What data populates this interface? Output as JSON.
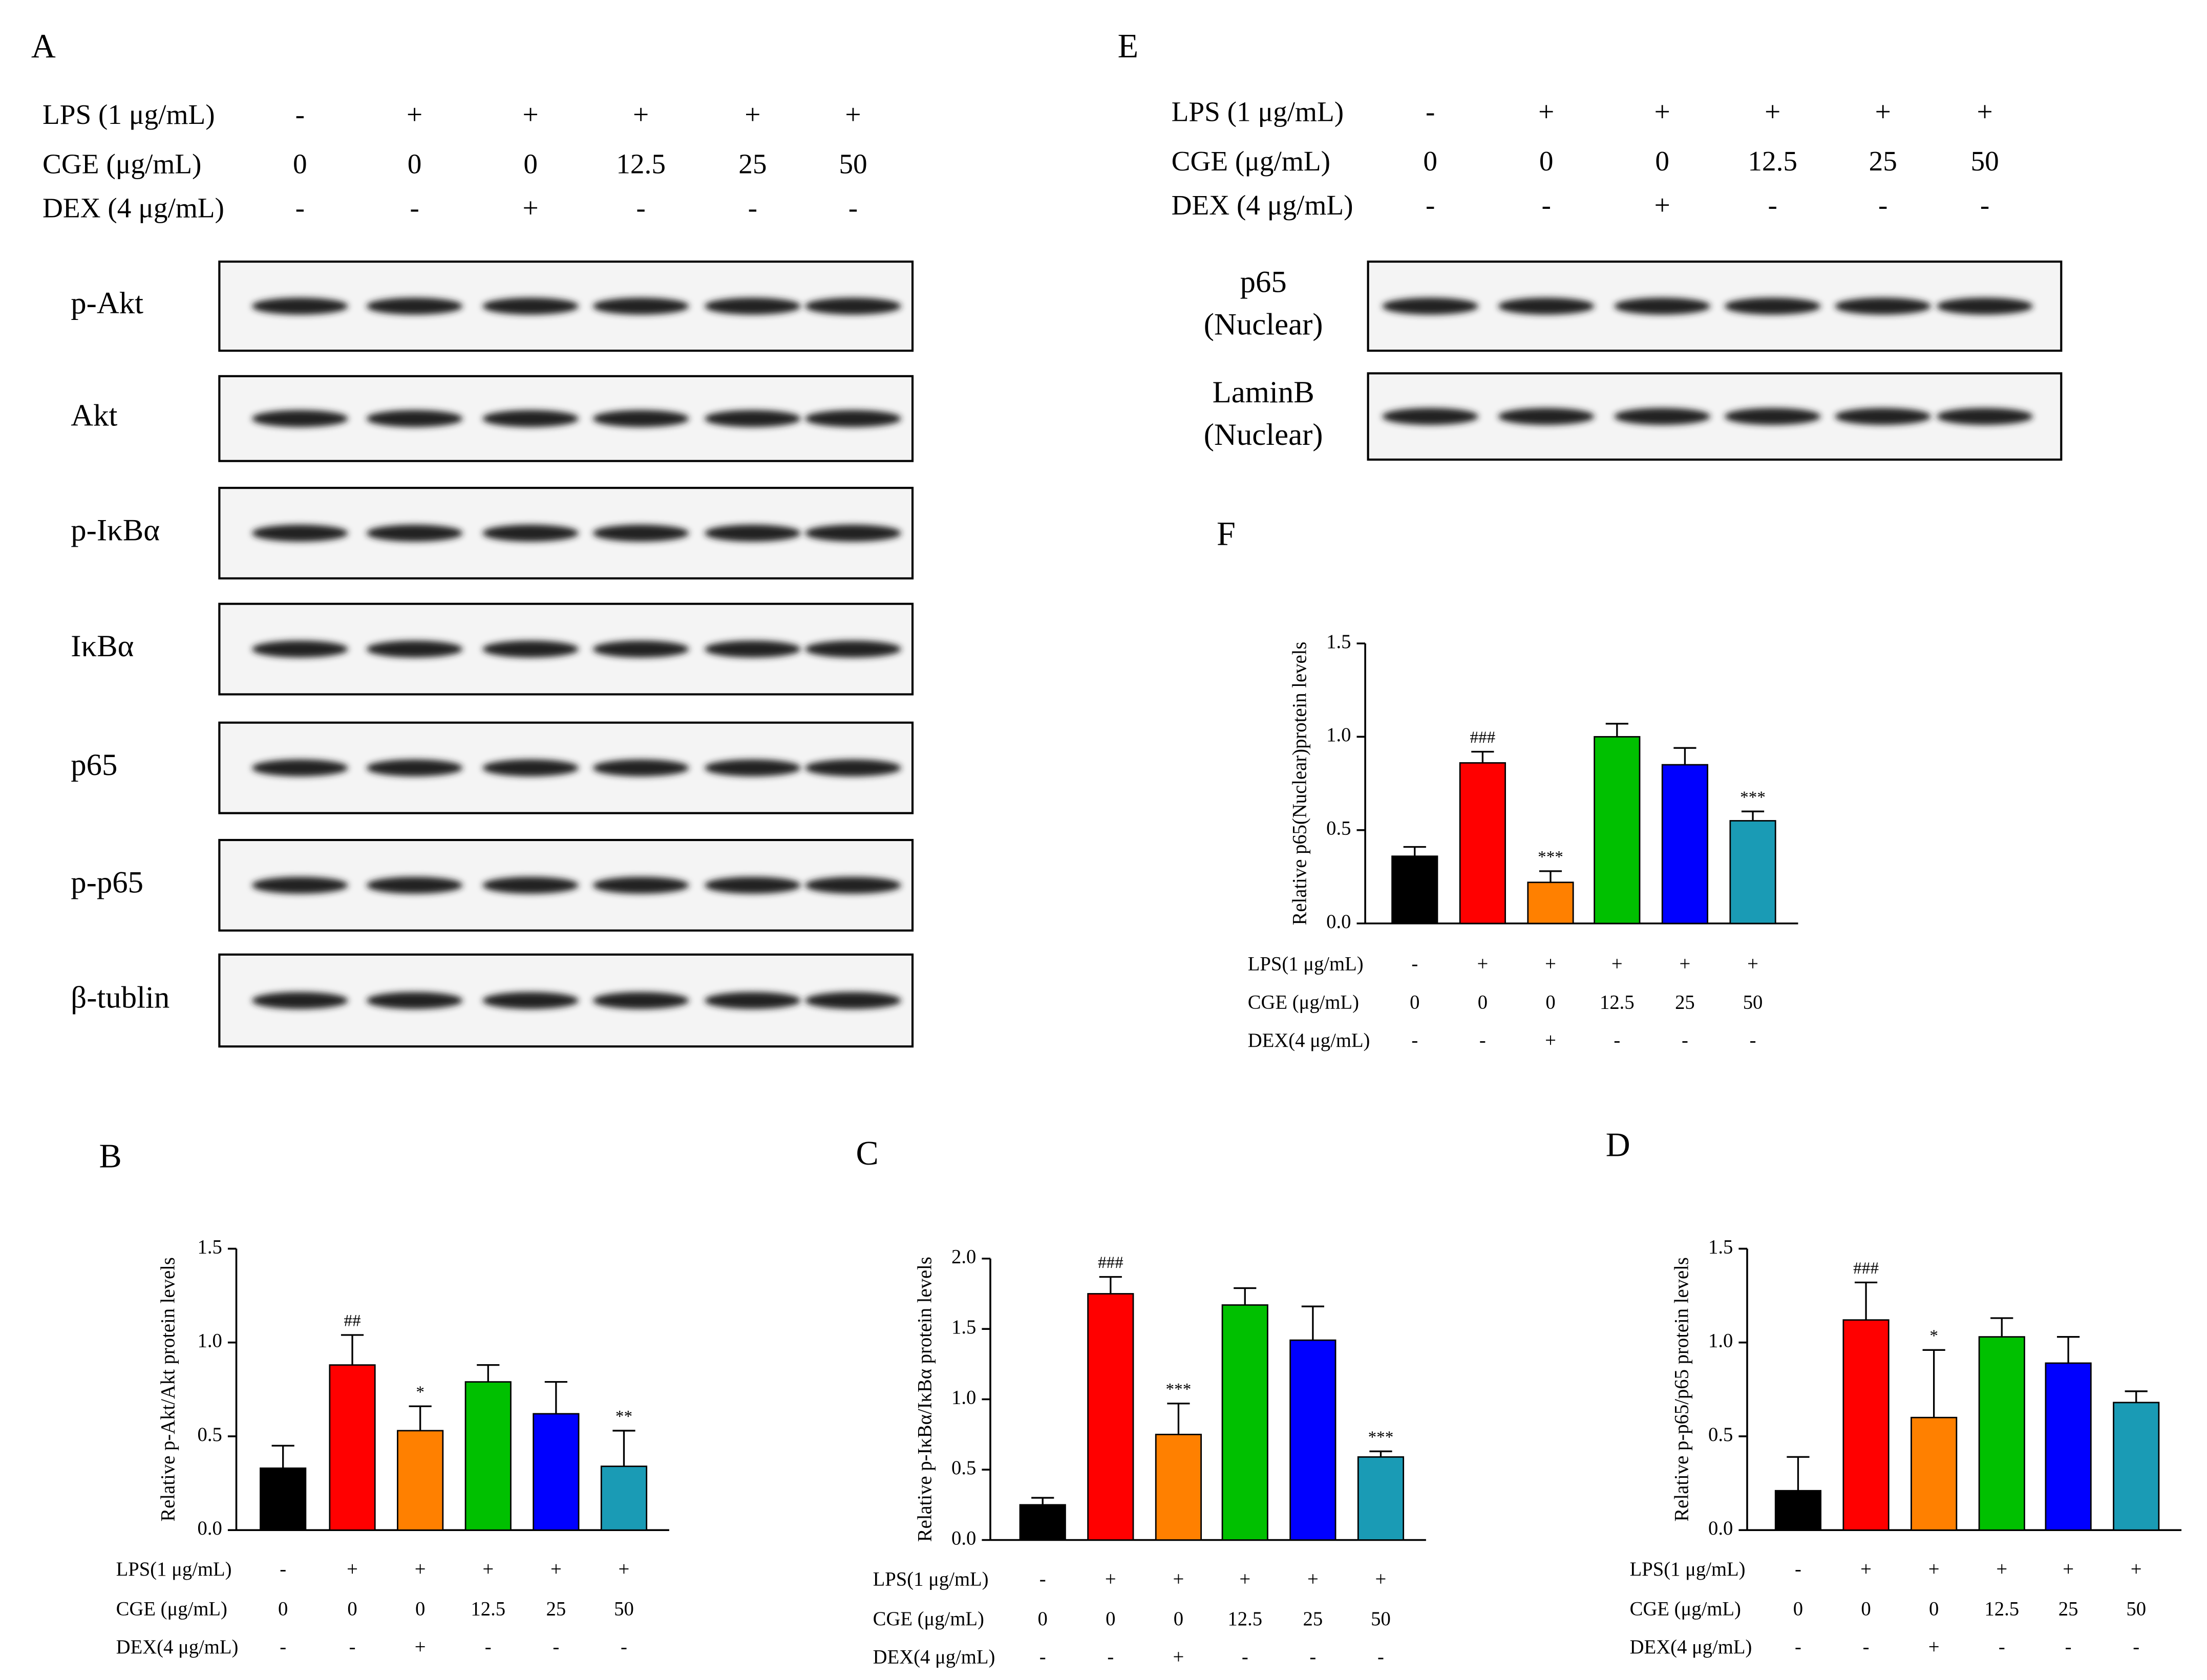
{
  "blot_panels": [
    {
      "panel_label": "A",
      "conditions": [
        {
          "name": "LPS (1 μg/mL)",
          "values": [
            "-",
            "+",
            "+",
            "+",
            "+",
            "+"
          ]
        },
        {
          "name": "CGE (μg/mL)",
          "values": [
            "0",
            "0",
            "0",
            "12.5",
            "25",
            "50"
          ]
        },
        {
          "name": "DEX (4 μg/mL)",
          "values": [
            "-",
            "-",
            "+",
            "-",
            "-",
            "-"
          ]
        }
      ],
      "bands": [
        [
          "p-Akt"
        ],
        [
          "Akt"
        ],
        [
          "p-IκBα"
        ],
        [
          "IκBα"
        ],
        [
          "p65"
        ],
        [
          "p-p65"
        ],
        [
          "β-tublin"
        ]
      ]
    },
    {
      "panel_label": "E",
      "conditions": [
        {
          "name": "LPS (1 μg/mL)",
          "values": [
            "-",
            "+",
            "+",
            "+",
            "+",
            "+"
          ]
        },
        {
          "name": "CGE (μg/mL)",
          "values": [
            "0",
            "0",
            "0",
            "12.5",
            "25",
            "50"
          ]
        },
        {
          "name": "DEX (4 μg/mL)",
          "values": [
            "-",
            "-",
            "+",
            "-",
            "-",
            "-"
          ]
        }
      ],
      "bands": [
        [
          "p65",
          "(Nuclear)"
        ],
        [
          "LaminB",
          "(Nuclear)"
        ]
      ]
    }
  ],
  "chart_data": [
    {
      "type": "bar",
      "panel_label": "B",
      "ylabel": "Relative p-Akt/Akt protein levels",
      "values": [
        0.33,
        0.88,
        0.53,
        0.79,
        0.62,
        0.34
      ],
      "errors": [
        0.12,
        0.16,
        0.13,
        0.09,
        0.17,
        0.19
      ],
      "annotations": [
        null,
        "##",
        "*",
        null,
        null,
        "**"
      ],
      "colors": [
        "#000000",
        "#ff0000",
        "#ff8000",
        "#00c000",
        "#0000ff",
        "#1a9bb5"
      ],
      "ylim": [
        0,
        1.5
      ],
      "yticks": [
        {
          "value": 0,
          "label": "0.0"
        },
        0.5,
        {
          "value": 1,
          "label": "1.0"
        },
        1.5
      ],
      "conditions": [
        {
          "name": "LPS(1 μg/mL)",
          "values": [
            "-",
            "+",
            "+",
            "+",
            "+",
            "+"
          ]
        },
        {
          "name": "CGE (μg/mL)",
          "values": [
            "0",
            "0",
            "0",
            "12.5",
            "25",
            "50"
          ]
        },
        {
          "name": "DEX(4 μg/mL)",
          "values": [
            "-",
            "-",
            "+",
            "-",
            "-",
            "-"
          ]
        }
      ]
    },
    {
      "type": "bar",
      "panel_label": "C",
      "ylabel": "Relative p-IκBα/IκBα protein levels",
      "values": [
        0.25,
        1.75,
        0.75,
        1.67,
        1.42,
        0.59
      ],
      "errors": [
        0.05,
        0.12,
        0.22,
        0.12,
        0.24,
        0.04
      ],
      "annotations": [
        null,
        "###",
        "***",
        null,
        null,
        "***"
      ],
      "colors": [
        "#000000",
        "#ff0000",
        "#ff8000",
        "#00c000",
        "#0000ff",
        "#1a9bb5"
      ],
      "ylim": [
        0,
        2
      ],
      "yticks": [
        {
          "value": 0,
          "label": "0.0"
        },
        0.5,
        {
          "value": 1,
          "label": "1.0"
        },
        1.5,
        {
          "value": 2,
          "label": "2.0"
        }
      ],
      "conditions": [
        {
          "name": "LPS(1 μg/mL)",
          "values": [
            "-",
            "+",
            "+",
            "+",
            "+",
            "+"
          ]
        },
        {
          "name": "CGE (μg/mL)",
          "values": [
            "0",
            "0",
            "0",
            "12.5",
            "25",
            "50"
          ]
        },
        {
          "name": "DEX(4 μg/mL)",
          "values": [
            "-",
            "-",
            "+",
            "-",
            "-",
            "-"
          ]
        }
      ]
    },
    {
      "type": "bar",
      "panel_label": "D",
      "ylabel": "Relative p-p65/p65 protein levels",
      "values": [
        0.21,
        1.12,
        0.6,
        1.03,
        0.89,
        0.68
      ],
      "errors": [
        0.18,
        0.2,
        0.36,
        0.1,
        0.14,
        0.06
      ],
      "annotations": [
        null,
        "###",
        "*",
        null,
        null,
        null
      ],
      "colors": [
        "#000000",
        "#ff0000",
        "#ff8000",
        "#00c000",
        "#0000ff",
        "#1a9bb5"
      ],
      "ylim": [
        0,
        1.5
      ],
      "yticks": [
        {
          "value": 0,
          "label": "0.0"
        },
        0.5,
        {
          "value": 1,
          "label": "1.0"
        },
        1.5
      ],
      "conditions": [
        {
          "name": "LPS(1 μg/mL)",
          "values": [
            "-",
            "+",
            "+",
            "+",
            "+",
            "+"
          ]
        },
        {
          "name": "CGE (μg/mL)",
          "values": [
            "0",
            "0",
            "0",
            "12.5",
            "25",
            "50"
          ]
        },
        {
          "name": "DEX(4 μg/mL)",
          "values": [
            "-",
            "-",
            "+",
            "-",
            "-",
            "-"
          ]
        }
      ]
    },
    {
      "type": "bar",
      "panel_label": "F",
      "ylabel": "Relative p65(Nuclear)protein levels",
      "values": [
        0.36,
        0.86,
        0.22,
        1.0,
        0.85,
        0.55
      ],
      "errors": [
        0.05,
        0.06,
        0.06,
        0.07,
        0.09,
        0.05
      ],
      "annotations": [
        null,
        "###",
        "***",
        null,
        null,
        "***"
      ],
      "colors": [
        "#000000",
        "#ff0000",
        "#ff8000",
        "#00c000",
        "#0000ff",
        "#1a9bb5"
      ],
      "ylim": [
        0,
        1.5
      ],
      "yticks": [
        {
          "value": 0,
          "label": "0.0"
        },
        0.5,
        {
          "value": 1,
          "label": "1.0"
        },
        1.5
      ],
      "conditions": [
        {
          "name": "LPS(1 μg/mL)",
          "values": [
            "-",
            "+",
            "+",
            "+",
            "+",
            "+"
          ]
        },
        {
          "name": "CGE (μg/mL)",
          "values": [
            "0",
            "0",
            "0",
            "12.5",
            "25",
            "50"
          ]
        },
        {
          "name": "DEX(4 μg/mL)",
          "values": [
            "-",
            "-",
            "+",
            "-",
            "-",
            "-"
          ]
        }
      ]
    }
  ]
}
